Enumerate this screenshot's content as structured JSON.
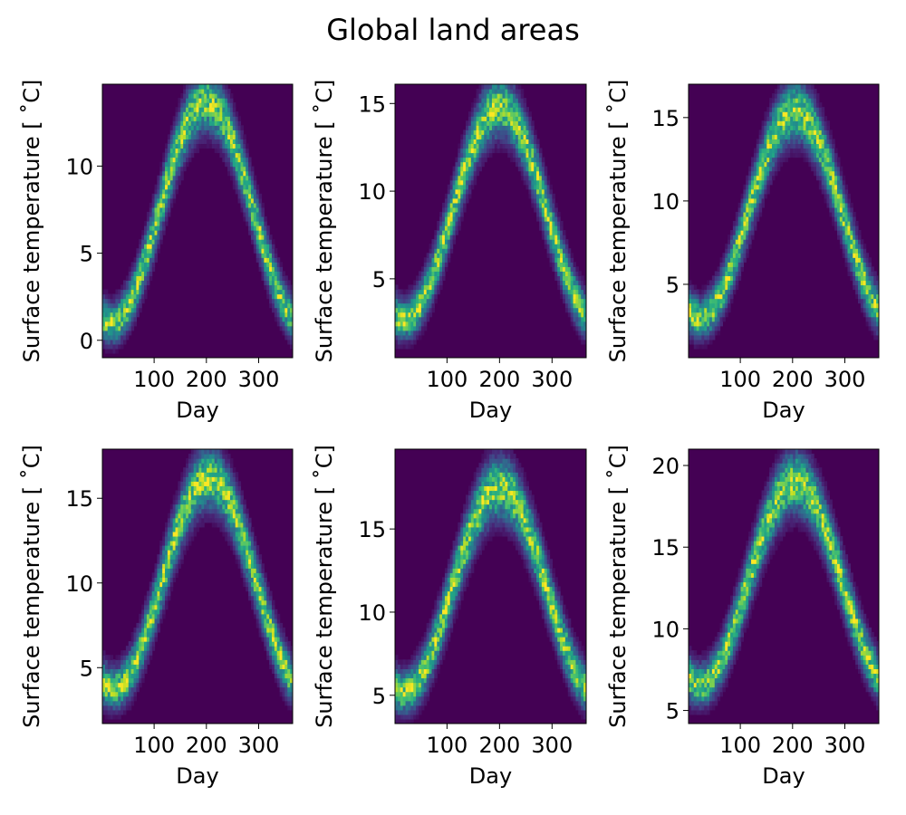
{
  "figure": {
    "title": "Global land areas"
  },
  "colors": {
    "background": "#ffffff",
    "colormap": "viridis",
    "empty_bin": "#440154"
  },
  "chart_data": [
    {
      "type": "heatmap",
      "title": "",
      "xlabel": "Day",
      "ylabel": "Surface temperature [$^{\\circ}$C]",
      "ylabel_display": "Surface temperature [ ˚C]",
      "xlim": [
        1,
        365
      ],
      "ylim": [
        -1.0,
        14.7
      ],
      "xticks": [
        100,
        200,
        300
      ],
      "yticks": [
        0,
        5,
        10
      ],
      "curve": {
        "base": 1.0,
        "amplitude": 12.7,
        "peak_day": 200,
        "spread": 0.8
      },
      "colorbar": false
    },
    {
      "type": "heatmap",
      "title": "",
      "xlabel": "Day",
      "ylabel": "Surface temperature [$^{\\circ}$C]",
      "ylabel_display": "Surface temperature [ ˚C]",
      "xlim": [
        1,
        365
      ],
      "ylim": [
        0.5,
        16.1
      ],
      "xticks": [
        100,
        200,
        300
      ],
      "yticks": [
        5,
        10,
        15
      ],
      "curve": {
        "base": 2.7,
        "amplitude": 12.1,
        "peak_day": 200,
        "spread": 0.8
      },
      "colorbar": false
    },
    {
      "type": "heatmap",
      "title": "",
      "xlabel": "Day",
      "ylabel": "Surface temperature [$^{\\circ}$C]",
      "ylabel_display": "Surface temperature [ ˚C]",
      "xlim": [
        1,
        365
      ],
      "ylim": [
        0.6,
        17.0
      ],
      "xticks": [
        100,
        200,
        300
      ],
      "yticks": [
        5,
        10,
        15
      ],
      "curve": {
        "base": 3.0,
        "amplitude": 12.4,
        "peak_day": 205,
        "spread": 0.85
      },
      "colorbar": false
    },
    {
      "type": "heatmap",
      "title": "",
      "xlabel": "Day",
      "ylabel": "Surface temperature [$^{\\circ}$C]",
      "ylabel_display": "Surface temperature [ ˚C]",
      "xlim": [
        1,
        365
      ],
      "ylim": [
        1.7,
        17.9
      ],
      "xticks": [
        100,
        200,
        300
      ],
      "yticks": [
        5,
        10,
        15
      ],
      "curve": {
        "base": 3.8,
        "amplitude": 12.4,
        "peak_day": 205,
        "spread": 0.85
      },
      "colorbar": false
    },
    {
      "type": "heatmap",
      "title": "",
      "xlabel": "Day",
      "ylabel": "Surface temperature [$^{\\circ}$C]",
      "ylabel_display": "Surface temperature [ ˚C]",
      "xlim": [
        1,
        365
      ],
      "ylim": [
        3.3,
        19.8
      ],
      "xticks": [
        100,
        200,
        300
      ],
      "yticks": [
        5,
        10,
        15
      ],
      "curve": {
        "base": 5.2,
        "amplitude": 12.3,
        "peak_day": 200,
        "spread": 0.9
      },
      "colorbar": false
    },
    {
      "type": "heatmap",
      "title": "",
      "xlabel": "Day",
      "ylabel": "Surface temperature [$^{\\circ}$C]",
      "ylabel_display": "Surface temperature [ ˚C]",
      "xlim": [
        1,
        365
      ],
      "ylim": [
        4.2,
        21.0
      ],
      "xticks": [
        100,
        200,
        300
      ],
      "yticks": [
        5,
        10,
        15,
        20
      ],
      "curve": {
        "base": 6.6,
        "amplitude": 12.4,
        "peak_day": 205,
        "spread": 0.9
      },
      "colorbar": false
    }
  ]
}
